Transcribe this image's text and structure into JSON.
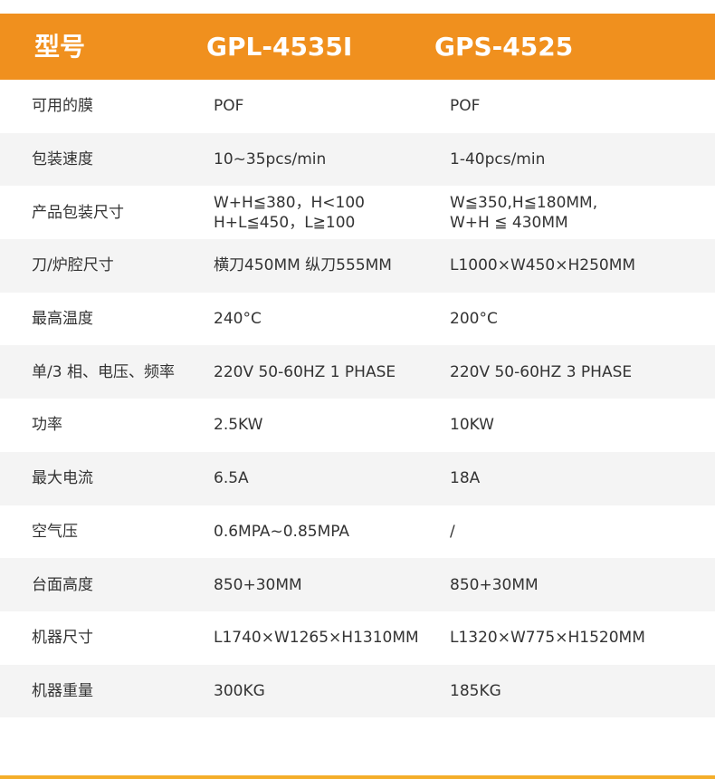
{
  "header": {
    "label": "型号",
    "models": [
      "GPL-4535I",
      "GPS-4525"
    ]
  },
  "rows": [
    {
      "label": "可用的膜",
      "a": "POF",
      "b": "POF"
    },
    {
      "label": "包装速度",
      "a": "10~35pcs/min",
      "b": "1-40pcs/min"
    },
    {
      "label": "产品包装尺寸",
      "a": "W+H≦380，H<100\nH+L≦450，L≧100",
      "b": "W≦350,H≦180MM,\nW+H ≦ 430MM"
    },
    {
      "label": "刀/炉腔尺寸",
      "a": "横刀450MM  纵刀555MM",
      "b": "L1000×W450×H250MM"
    },
    {
      "label": "最高温度",
      "a": "240°C",
      "b": "200°C"
    },
    {
      "label": "单/3 相、电压、频率",
      "a": "220V 50-60HZ 1 PHASE",
      "b": "220V  50-60HZ 3 PHASE"
    },
    {
      "label": "功率",
      "a": "2.5KW",
      "b": "10KW"
    },
    {
      "label": "最大电流",
      "a": "6.5A",
      "b": "18A"
    },
    {
      "label": "空气压",
      "a": "0.6MPA~0.85MPA",
      "b": "/"
    },
    {
      "label": "台面高度",
      "a": "850+30MM",
      "b": "850+30MM"
    },
    {
      "label": "机器尺寸",
      "a": "L1740×W1265×H1310MM",
      "b": "L1320×W775×H1520MM"
    },
    {
      "label": "机器重量",
      "a": "300KG",
      "b": "185KG"
    }
  ],
  "colors": {
    "header": "#f0901e",
    "stripe": "#f4f4f4",
    "bottom_line": "#f4ae2a"
  }
}
